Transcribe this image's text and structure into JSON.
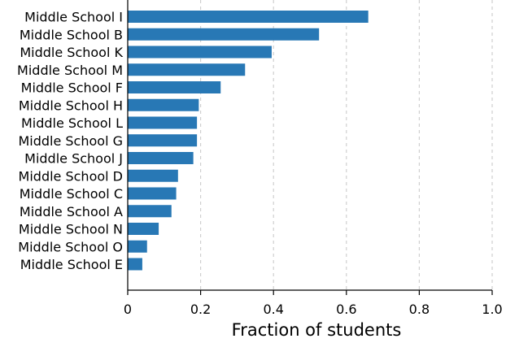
{
  "chart_data": {
    "type": "bar",
    "orientation": "horizontal",
    "categories": [
      "Middle School I",
      "Middle School B",
      "Middle School K",
      "Middle School M",
      "Middle School F",
      "Middle School H",
      "Middle School L",
      "Middle School G",
      "Middle School J",
      "Middle School D",
      "Middle School C",
      "Middle School A",
      "Middle School N",
      "Middle School O",
      "Middle School E"
    ],
    "values": [
      0.66,
      0.525,
      0.395,
      0.322,
      0.255,
      0.195,
      0.19,
      0.19,
      0.18,
      0.138,
      0.133,
      0.12,
      0.085,
      0.053,
      0.04
    ],
    "title": "",
    "xlabel": "Fraction of students",
    "ylabel": "",
    "xlim": [
      0,
      1.0
    ],
    "xticks": [
      0,
      0.2,
      0.4,
      0.6,
      0.8,
      1.0
    ],
    "xtick_labels": [
      "0",
      "0.2",
      "0.4",
      "0.6",
      "0.8",
      "1.0"
    ],
    "grid": "vertical dashed",
    "colors": {
      "bar": "#2878b5",
      "grid": "#cfcfcf",
      "axis": "#000000"
    }
  }
}
